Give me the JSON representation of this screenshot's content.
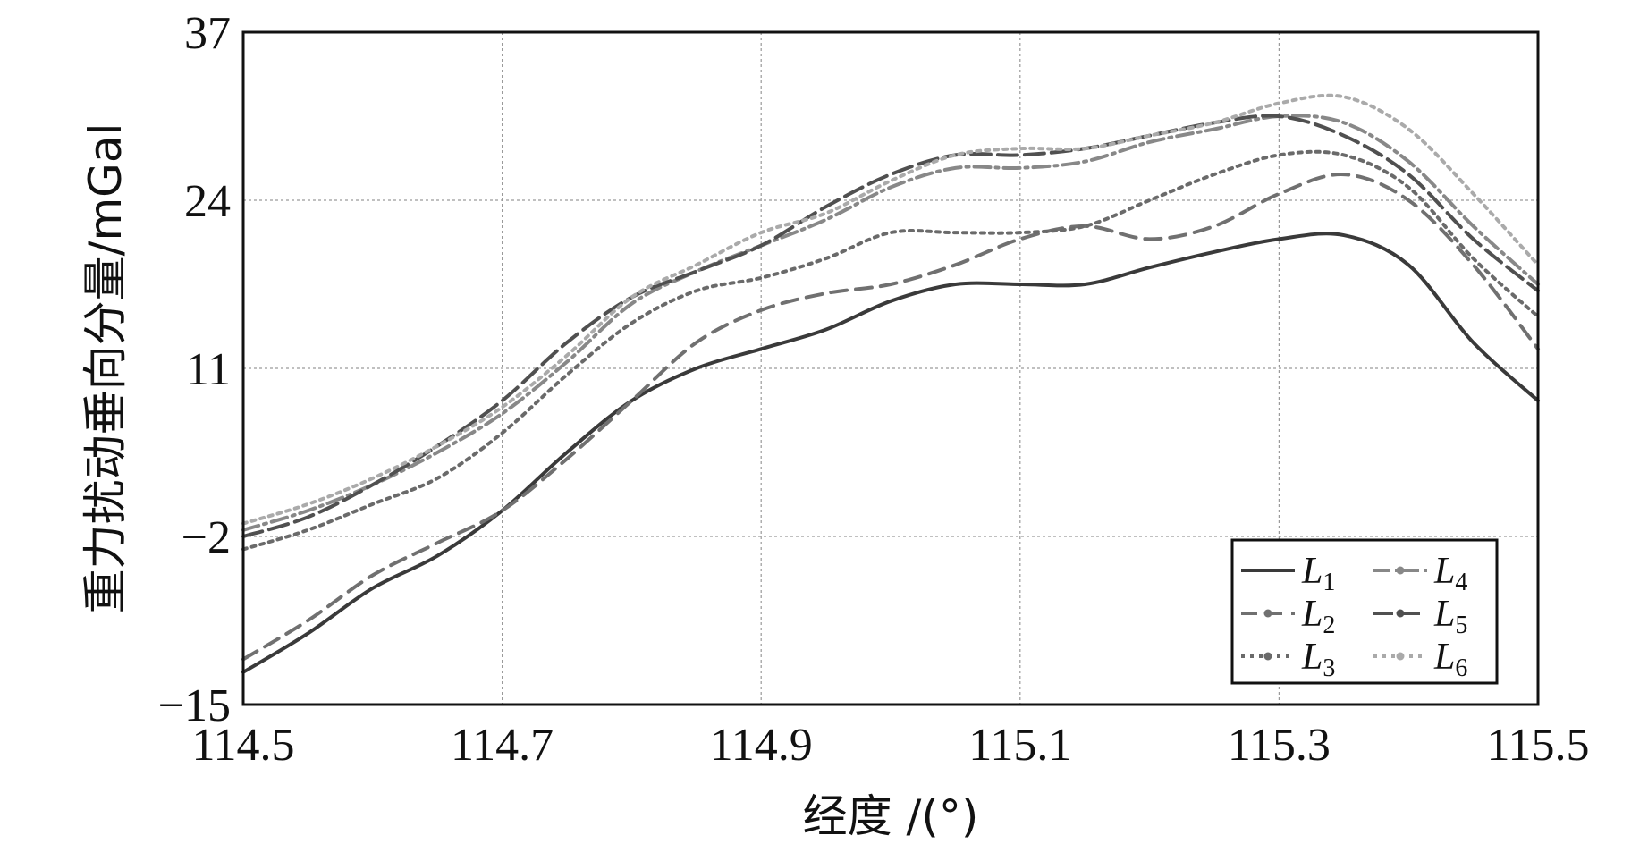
{
  "chart_data": {
    "type": "line",
    "xlabel": "经度 /(°)",
    "ylabel": "重力扰动垂向分量/mGal",
    "xlim": [
      114.5,
      115.5
    ],
    "ylim": [
      -15,
      37
    ],
    "xticks": [
      "114.5",
      "114.7",
      "114.9",
      "115.1",
      "115.3",
      "115.5"
    ],
    "yticks": [
      "−15",
      "−2",
      "11",
      "24",
      "37"
    ],
    "grid": true,
    "legend_position": "bottom-right",
    "x": [
      114.5,
      114.55,
      114.6,
      114.65,
      114.7,
      114.75,
      114.8,
      114.85,
      114.9,
      114.95,
      115.0,
      115.05,
      115.1,
      115.15,
      115.2,
      115.25,
      115.3,
      115.35,
      115.4,
      115.45,
      115.5
    ],
    "series": [
      {
        "name": "L",
        "sub": "1",
        "color": "#3a3a3a",
        "dash": "",
        "values": [
          -12.5,
          -9.5,
          -6.0,
          -3.5,
          0.0,
          4.5,
          8.5,
          11.0,
          12.5,
          14.0,
          16.2,
          17.5,
          17.5,
          17.5,
          18.8,
          20.0,
          21.0,
          21.3,
          19.0,
          13.0,
          8.5
        ]
      },
      {
        "name": "L",
        "sub": "2",
        "color": "#707070",
        "dash": "18 10",
        "values": [
          -11.5,
          -8.5,
          -5.0,
          -2.5,
          0.0,
          4.0,
          8.5,
          13.0,
          15.5,
          16.8,
          17.5,
          19.0,
          21.0,
          22.0,
          21.0,
          22.0,
          24.5,
          26.0,
          24.0,
          19.0,
          12.5
        ]
      },
      {
        "name": "L",
        "sub": "3",
        "color": "#6a6a6a",
        "dash": "4 6",
        "values": [
          -3.0,
          -1.5,
          0.5,
          2.5,
          6.0,
          10.5,
          14.5,
          17.0,
          18.0,
          19.5,
          21.5,
          21.5,
          21.5,
          22.0,
          24.0,
          26.0,
          27.5,
          27.5,
          25.0,
          19.5,
          15.0
        ]
      },
      {
        "name": "L",
        "sub": "4",
        "color": "#888888",
        "dash": "18 6 3 6",
        "values": [
          -1.5,
          0.0,
          2.0,
          4.5,
          7.5,
          11.5,
          16.0,
          18.5,
          20.5,
          22.5,
          25.0,
          26.5,
          26.5,
          27.0,
          28.5,
          29.5,
          30.5,
          30.0,
          27.0,
          22.0,
          17.5
        ]
      },
      {
        "name": "L",
        "sub": "5",
        "color": "#505050",
        "dash": "22 8",
        "values": [
          -2.0,
          -0.5,
          2.0,
          5.0,
          8.5,
          13.0,
          16.5,
          18.5,
          20.5,
          23.5,
          26.0,
          27.5,
          27.5,
          28.0,
          29.0,
          30.0,
          30.5,
          29.0,
          26.0,
          21.0,
          17.0
        ]
      },
      {
        "name": "L",
        "sub": "6",
        "color": "#aaaaaa",
        "dash": "4 6",
        "values": [
          -1.0,
          0.5,
          2.5,
          5.0,
          8.0,
          12.0,
          16.5,
          19.0,
          21.5,
          23.0,
          25.5,
          27.5,
          28.0,
          28.0,
          29.0,
          30.0,
          31.5,
          32.0,
          29.5,
          24.5,
          19.0
        ]
      }
    ]
  }
}
